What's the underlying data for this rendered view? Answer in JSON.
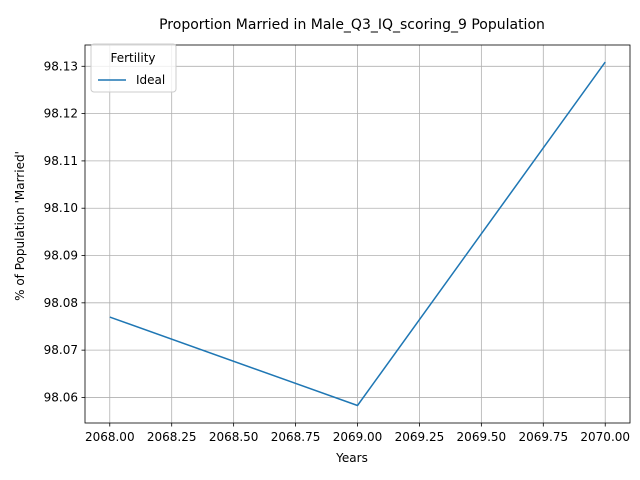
{
  "chart_data": {
    "type": "line",
    "title": "Proportion Married in Male_Q3_IQ_scoring_9 Population",
    "xlabel": "Years",
    "ylabel": "% of Population 'Married'",
    "x": [
      2068.0,
      2069.0,
      2070.0
    ],
    "series": [
      {
        "name": "Ideal",
        "values": [
          98.077,
          98.0583,
          98.1309
        ],
        "color": "#1f77b4"
      }
    ],
    "xlim": [
      2067.9,
      2070.1
    ],
    "ylim": [
      98.0546,
      98.1345
    ],
    "xticks": [
      2068.0,
      2068.25,
      2068.5,
      2068.75,
      2069.0,
      2069.25,
      2069.5,
      2069.75,
      2070.0
    ],
    "xtick_labels": [
      "2068.00",
      "2068.25",
      "2068.50",
      "2068.75",
      "2069.00",
      "2069.25",
      "2069.50",
      "2069.75",
      "2070.00"
    ],
    "yticks": [
      98.06,
      98.07,
      98.08,
      98.09,
      98.1,
      98.11,
      98.12,
      98.13
    ],
    "ytick_labels": [
      "98.06",
      "98.07",
      "98.08",
      "98.09",
      "98.10",
      "98.11",
      "98.12",
      "98.13"
    ],
    "grid": true,
    "legend": {
      "title": "Fertility",
      "placement": "upper-left"
    }
  }
}
